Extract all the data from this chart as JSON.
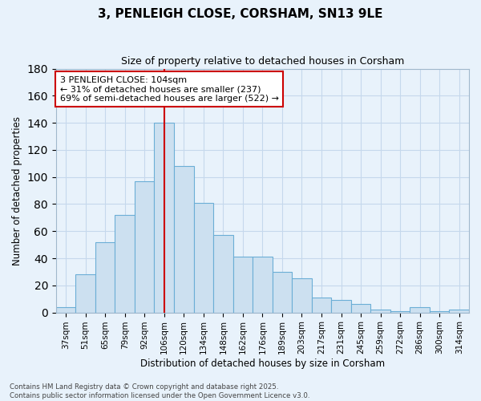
{
  "title": "3, PENLEIGH CLOSE, CORSHAM, SN13 9LE",
  "subtitle": "Size of property relative to detached houses in Corsham",
  "xlabel": "Distribution of detached houses by size in Corsham",
  "ylabel": "Number of detached properties",
  "categories": [
    "37sqm",
    "51sqm",
    "65sqm",
    "79sqm",
    "92sqm",
    "106sqm",
    "120sqm",
    "134sqm",
    "148sqm",
    "162sqm",
    "176sqm",
    "189sqm",
    "203sqm",
    "217sqm",
    "231sqm",
    "245sqm",
    "259sqm",
    "272sqm",
    "286sqm",
    "300sqm",
    "314sqm"
  ],
  "values": [
    4,
    28,
    52,
    72,
    97,
    140,
    108,
    81,
    57,
    41,
    41,
    30,
    25,
    11,
    9,
    6,
    2,
    1,
    4,
    1,
    2
  ],
  "bar_color": "#cce0f0",
  "bar_edge_color": "#6baed6",
  "vline_x_index": 5,
  "vline_color": "#cc0000",
  "annotation_line1": "3 PENLEIGH CLOSE: 104sqm",
  "annotation_line2": "← 31% of detached houses are smaller (237)",
  "annotation_line3": "69% of semi-detached houses are larger (522) →",
  "annotation_box_color": "#ffffff",
  "annotation_box_edge_color": "#cc0000",
  "ylim": [
    0,
    180
  ],
  "yticks": [
    0,
    20,
    40,
    60,
    80,
    100,
    120,
    140,
    160,
    180
  ],
  "grid_color": "#c5d8ec",
  "background_color": "#e8f2fb",
  "footer_line1": "Contains HM Land Registry data © Crown copyright and database right 2025.",
  "footer_line2": "Contains public sector information licensed under the Open Government Licence v3.0."
}
